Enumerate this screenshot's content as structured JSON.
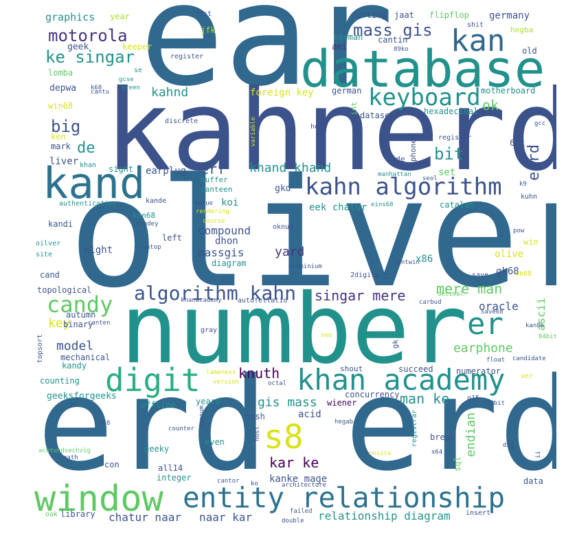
{
  "palette": {
    "navy": "#3b528b",
    "blue": "#31688e",
    "steel": "#2c728e",
    "teal": "#21918c",
    "sea": "#28ae80",
    "green": "#5ec962",
    "lime": "#addc30",
    "yellow": "#d8e219",
    "purple": "#46327e",
    "dark": "#440154"
  },
  "words": [
    {
      "id": "ear",
      "text": "ear"
    },
    {
      "id": "oliver",
      "text": "oliver"
    },
    {
      "id": "kahnerd",
      "text": "kahnerd"
    },
    {
      "id": "number",
      "text": "number"
    },
    {
      "id": "erd-erd",
      "text": "erd erd"
    },
    {
      "id": "database",
      "text": "database"
    },
    {
      "id": "kand",
      "text": "kand"
    },
    {
      "id": "window",
      "text": "window"
    },
    {
      "id": "entity-relationship",
      "text": "entity relationship"
    },
    {
      "id": "kahn-algorithm",
      "text": "kahn algorithm"
    },
    {
      "id": "khan-academy",
      "text": "khan academy"
    },
    {
      "id": "digit",
      "text": "digit"
    },
    {
      "id": "kan",
      "text": "kan"
    },
    {
      "id": "s8",
      "text": "s8"
    },
    {
      "id": "keyboard",
      "text": "keyboard"
    },
    {
      "id": "algorithm-kahn",
      "text": "algorithm kahn"
    },
    {
      "id": "candy",
      "text": "candy"
    },
    {
      "id": "er",
      "text": "er"
    },
    {
      "id": "mass-gis",
      "text": "mass gis"
    },
    {
      "id": "ke-singar",
      "text": "ke singar"
    },
    {
      "id": "motorola",
      "text": "motorola"
    },
    {
      "id": "big",
      "text": "big"
    },
    {
      "id": "kahnd",
      "text": "kahnd"
    },
    {
      "id": "de",
      "text": "de"
    },
    {
      "id": "ok",
      "text": "ok"
    },
    {
      "id": "bit",
      "text": "bit"
    },
    {
      "id": "eard",
      "text": "eard"
    },
    {
      "id": "erf",
      "text": "erf"
    },
    {
      "id": "khand-khand",
      "text": "khand khand"
    },
    {
      "id": "singar-mere",
      "text": "singar mere"
    },
    {
      "id": "mere-man",
      "text": "mere man"
    },
    {
      "id": "knuth",
      "text": "knuth"
    },
    {
      "id": "man-ke",
      "text": "man ke"
    },
    {
      "id": "gis-mass",
      "text": "gis mass"
    },
    {
      "id": "kar-ke",
      "text": "kar ke"
    },
    {
      "id": "relationship-diagram",
      "text": "relationship diagram"
    },
    {
      "id": "chatur-naar",
      "text": "chatur naar"
    },
    {
      "id": "naar-kar",
      "text": "naar kar"
    },
    {
      "id": "earphone",
      "text": "earphone"
    },
    {
      "id": "endian",
      "text": "endian"
    },
    {
      "id": "model",
      "text": "model"
    },
    {
      "id": "key",
      "text": "key"
    },
    {
      "id": "ascii",
      "text": "ascii"
    },
    {
      "id": "yard",
      "text": "yard"
    },
    {
      "id": "oracle",
      "text": "oracle"
    },
    {
      "id": "compound",
      "text": "compound"
    },
    {
      "id": "massgis",
      "text": "massgis"
    },
    {
      "id": "koi",
      "text": "koi"
    },
    {
      "id": "dhon",
      "text": "dhon"
    },
    {
      "id": "acid",
      "text": "acid"
    },
    {
      "id": "concurrency",
      "text": "concurrency"
    },
    {
      "id": "wiener",
      "text": "wiener"
    },
    {
      "id": "kanke-mage",
      "text": "kanke mage"
    },
    {
      "id": "foreign-key",
      "text": "foreign key"
    },
    {
      "id": "earplug",
      "text": "earplug"
    },
    {
      "id": "gk68",
      "text": "gk68"
    },
    {
      "id": "olive",
      "text": "olive"
    },
    {
      "id": "x86",
      "text": "x86"
    },
    {
      "id": "eek-chatur",
      "text": "eek chatur"
    },
    {
      "id": "graphics",
      "text": "graphics"
    },
    {
      "id": "year",
      "text": "year"
    },
    {
      "id": "fist",
      "text": "fist"
    },
    {
      "id": "sorting",
      "text": "sorting"
    },
    {
      "id": "jaat",
      "text": "jaat"
    },
    {
      "id": "flipflop",
      "text": "flipflop"
    },
    {
      "id": "germany",
      "text": "germany"
    },
    {
      "id": "shit",
      "text": "shit"
    },
    {
      "id": "hegba",
      "text": "hegba"
    },
    {
      "id": "jfk",
      "text": "jfk"
    },
    {
      "id": "korman",
      "text": "korman"
    },
    {
      "id": "cantin",
      "text": "cantin"
    },
    {
      "id": "geek",
      "text": "geek"
    },
    {
      "id": "keeper",
      "text": "keeper"
    },
    {
      "id": "ami",
      "text": "ami"
    },
    {
      "id": "89ko",
      "text": "89ko"
    },
    {
      "id": "old",
      "text": "old"
    },
    {
      "id": "register",
      "text": "register"
    },
    {
      "id": "lomba",
      "text": "lomba"
    },
    {
      "id": "se",
      "text": "se"
    },
    {
      "id": "gcse",
      "text": "gcse"
    },
    {
      "id": "depwa",
      "text": "depwa"
    },
    {
      "id": "k68",
      "text": "k68"
    },
    {
      "id": "green",
      "text": "green"
    },
    {
      "id": "german",
      "text": "german"
    },
    {
      "id": "motherboard",
      "text": "motherboard"
    },
    {
      "id": "win68",
      "text": "win68"
    },
    {
      "id": "cantu",
      "text": "cantu"
    },
    {
      "id": "int",
      "text": "int"
    },
    {
      "id": "hexadecimal",
      "text": "hexadecimal"
    },
    {
      "id": "dataset",
      "text": "dataset"
    },
    {
      "id": "holy",
      "text": "holy"
    },
    {
      "id": "discrete",
      "text": "discrete"
    },
    {
      "id": "gcc",
      "text": "gcc"
    },
    {
      "id": "ken",
      "text": "ken"
    },
    {
      "id": "mark",
      "text": "mark"
    },
    {
      "id": "variable",
      "text": "variable"
    },
    {
      "id": "registar",
      "text": "registar"
    },
    {
      "id": "68k",
      "text": "68k"
    },
    {
      "id": "liver",
      "text": "liver"
    },
    {
      "id": "phone",
      "text": "phone"
    },
    {
      "id": "code",
      "text": "code"
    },
    {
      "id": "khan",
      "text": "khan"
    },
    {
      "id": "sight",
      "text": "sight"
    },
    {
      "id": "buffer",
      "text": "buffer"
    },
    {
      "id": "manhattan",
      "text": "manhattan"
    },
    {
      "id": "set",
      "text": "set"
    },
    {
      "id": "seol",
      "text": "seol"
    },
    {
      "id": "k9",
      "text": "k9"
    },
    {
      "id": "canteen",
      "text": "canteen"
    },
    {
      "id": "gkd",
      "text": "gkd"
    },
    {
      "id": "kande",
      "text": "kande"
    },
    {
      "id": "authentication",
      "text": "authentication"
    },
    {
      "id": "value",
      "text": "value"
    },
    {
      "id": "eins68",
      "text": "eins68"
    },
    {
      "id": "kuhn",
      "text": "kuhn"
    },
    {
      "id": "catalan",
      "text": "catalan"
    },
    {
      "id": "rendering",
      "text": "rendering"
    },
    {
      "id": "kandi",
      "text": "kandi"
    },
    {
      "id": "kan68",
      "text": "kan68"
    },
    {
      "id": "windey",
      "text": "windey"
    },
    {
      "id": "course",
      "text": "course"
    },
    {
      "id": "oknum",
      "text": "oknum"
    },
    {
      "id": "pow",
      "text": "pow"
    },
    {
      "id": "oilver",
      "text": "oilver"
    },
    {
      "id": "left",
      "text": "left"
    },
    {
      "id": "cantop",
      "text": "cantop"
    },
    {
      "id": "win",
      "text": "win"
    },
    {
      "id": "night",
      "text": "night"
    },
    {
      "id": "site",
      "text": "site"
    },
    {
      "id": "diagram",
      "text": "diagram"
    },
    {
      "id": "aluminium",
      "text": "aluminium"
    },
    {
      "id": "cantwin",
      "text": "cantwin"
    },
    {
      "id": "cand",
      "text": "cand"
    },
    {
      "id": "2digits",
      "text": "2digits"
    },
    {
      "id": "ct",
      "text": "ct"
    },
    {
      "id": "save",
      "text": "save"
    },
    {
      "id": "ok68",
      "text": "ok68"
    },
    {
      "id": "topological",
      "text": "topological"
    },
    {
      "id": "decimal",
      "text": "decimal"
    },
    {
      "id": "khanacademy",
      "text": "khanacademy"
    },
    {
      "id": "autofellatio",
      "text": "autofellatio"
    },
    {
      "id": "carbud",
      "text": "carbud"
    },
    {
      "id": "autumn",
      "text": "autumn"
    },
    {
      "id": "canten",
      "text": "canten"
    },
    {
      "id": "save68",
      "text": "save68"
    },
    {
      "id": "binary",
      "text": "binary"
    },
    {
      "id": "kan86",
      "text": "kan86"
    },
    {
      "id": "gray",
      "text": "gray"
    },
    {
      "id": "seo",
      "text": "seo"
    },
    {
      "id": "topsort",
      "text": "topsort"
    },
    {
      "id": "64bit",
      "text": "64bit"
    },
    {
      "id": "gk",
      "text": "gk"
    },
    {
      "id": "mechanical",
      "text": "mechanical"
    },
    {
      "id": "float",
      "text": "float"
    },
    {
      "id": "candidate",
      "text": "candidate"
    },
    {
      "id": "kandy",
      "text": "kandy"
    },
    {
      "id": "shout",
      "text": "shout"
    },
    {
      "id": "succeed",
      "text": "succeed"
    },
    {
      "id": "lameness",
      "text": "lameness"
    },
    {
      "id": "numerator",
      "text": "numerator"
    },
    {
      "id": "ver",
      "text": "ver"
    },
    {
      "id": "counting",
      "text": "counting"
    },
    {
      "id": "version",
      "text": "version"
    },
    {
      "id": "octal",
      "text": "octal"
    },
    {
      "id": "geeksforgeeks",
      "text": "geeksforgeeks"
    },
    {
      "id": "offline",
      "text": "offline"
    },
    {
      "id": "yeard",
      "text": "yeard"
    },
    {
      "id": "g15",
      "text": "g15"
    },
    {
      "id": "32bit",
      "text": "32bit"
    },
    {
      "id": "2d",
      "text": "2d"
    },
    {
      "id": "mannum",
      "text": "mannum"
    },
    {
      "id": "hash",
      "text": "hash"
    },
    {
      "id": "x68",
      "text": "x68"
    },
    {
      "id": "hegab",
      "text": "hegab"
    },
    {
      "id": "registrar",
      "text": "registrar"
    },
    {
      "id": "counter",
      "text": "counter"
    },
    {
      "id": "host",
      "text": "host"
    },
    {
      "id": "even",
      "text": "even"
    },
    {
      "id": "break",
      "text": "break"
    },
    {
      "id": "dig",
      "text": "dig"
    },
    {
      "id": "achtundsechzig",
      "text": "achtundsechzig"
    },
    {
      "id": "onsite",
      "text": "onsite"
    },
    {
      "id": "geeky",
      "text": "geeky"
    },
    {
      "id": "math",
      "text": "math"
    },
    {
      "id": "x64",
      "text": "x64"
    },
    {
      "id": "ii",
      "text": "ii"
    },
    {
      "id": "con",
      "text": "con"
    },
    {
      "id": "sql",
      "text": "sql"
    },
    {
      "id": "all14",
      "text": "all14"
    },
    {
      "id": "integer",
      "text": "integer"
    },
    {
      "id": "cantor",
      "text": "cantor"
    },
    {
      "id": "ko",
      "text": "ko"
    },
    {
      "id": "architecture",
      "text": "architecture"
    },
    {
      "id": "data",
      "text": "data"
    },
    {
      "id": "oak",
      "text": "oak"
    },
    {
      "id": "library",
      "text": "library"
    },
    {
      "id": "failed",
      "text": "failed"
    },
    {
      "id": "insert",
      "text": "insert"
    },
    {
      "id": "double",
      "text": "double"
    }
  ]
}
